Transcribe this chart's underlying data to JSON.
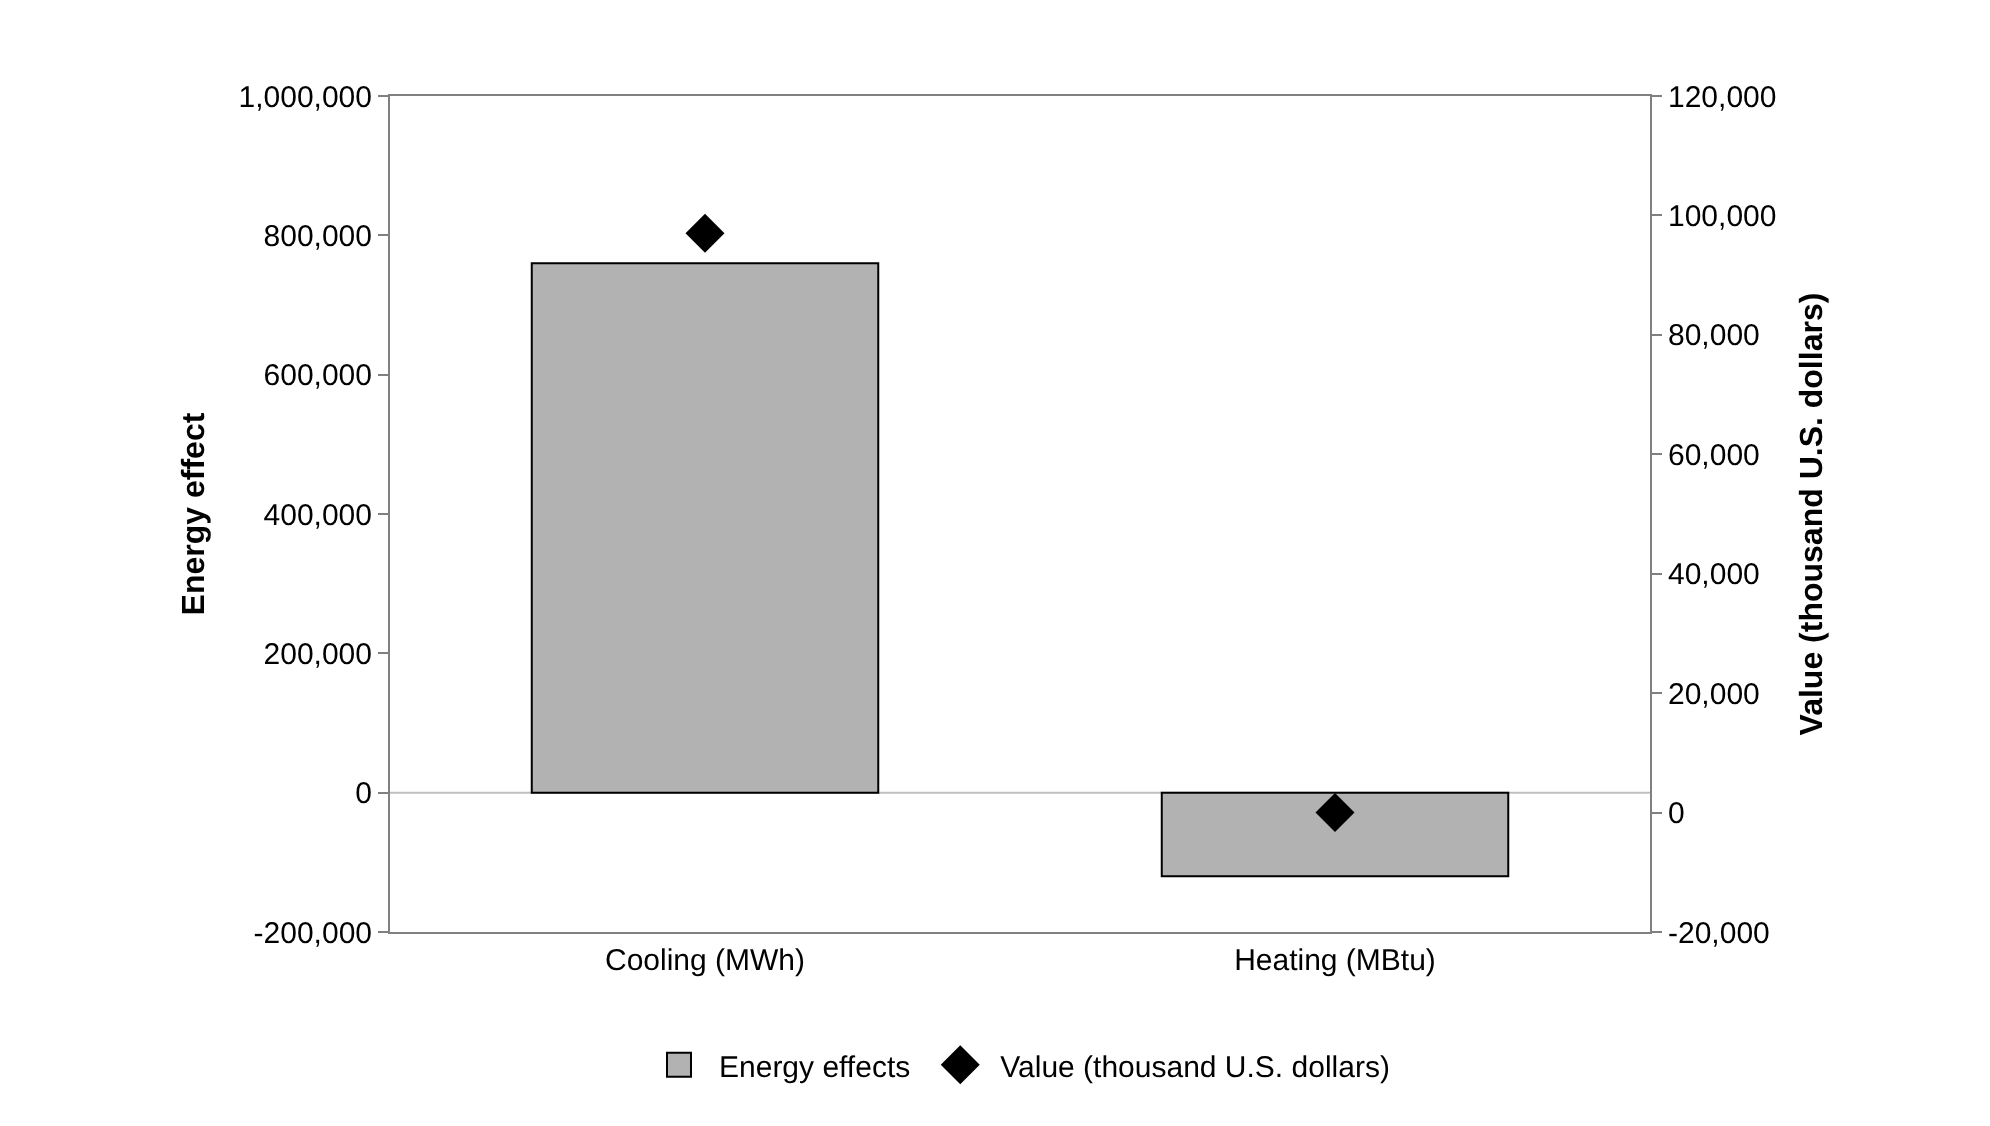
{
  "chart_data": {
    "type": "bar",
    "categories": [
      "Cooling (MWh)",
      "Heating (MBtu)"
    ],
    "ylabel": "Energy effect",
    "y2label": "Value (thousand U.S. dollars)",
    "ylim": [
      -200000,
      1000000
    ],
    "yticks": [
      {
        "value": -200000,
        "label": "-200,000"
      },
      {
        "value": 0,
        "label": "0"
      },
      {
        "value": 200000,
        "label": "200,000"
      },
      {
        "value": 400000,
        "label": "400,000"
      },
      {
        "value": 600000,
        "label": "600,000"
      },
      {
        "value": 800000,
        "label": "800,000"
      },
      {
        "value": 1000000,
        "label": "1,000,000"
      }
    ],
    "y2lim": [
      -20000,
      120000
    ],
    "y2ticks": [
      {
        "value": -20000,
        "label": "-20,000"
      },
      {
        "value": 0,
        "label": "0"
      },
      {
        "value": 20000,
        "label": "20,000"
      },
      {
        "value": 40000,
        "label": "40,000"
      },
      {
        "value": 60000,
        "label": "60,000"
      },
      {
        "value": 80000,
        "label": "80,000"
      },
      {
        "value": 100000,
        "label": "100,000"
      },
      {
        "value": 120000,
        "label": "120,000"
      }
    ],
    "series": [
      {
        "name": "Energy effects",
        "color": "#b2b2b2",
        "values": [
          760000,
          -120000
        ]
      },
      {
        "name": "Value (thousand U.S. dollars)",
        "type": "scatter",
        "axis": "y2",
        "marker": "diamond",
        "color": "#000000",
        "values": [
          97000,
          0
        ]
      }
    ],
    "ref_lines": [
      {
        "axis": "y",
        "value": 0,
        "color": "#c0c0c0"
      }
    ],
    "grid": false,
    "legend": "bottom"
  }
}
